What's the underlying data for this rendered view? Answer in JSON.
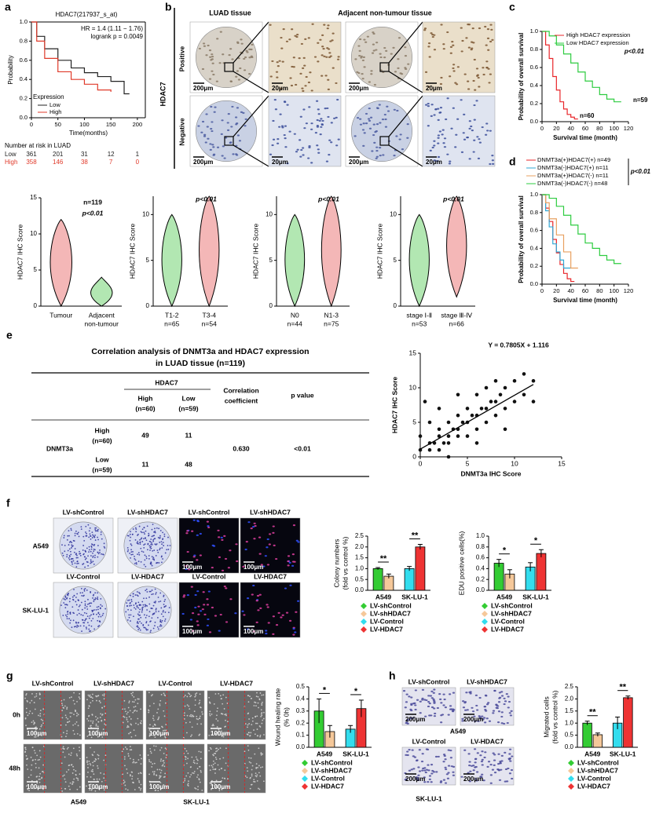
{
  "panel_labels": [
    "a",
    "b",
    "c",
    "d",
    "e",
    "f",
    "g",
    "h"
  ],
  "panel_b": {
    "columns": [
      "LUAD tissue",
      "Adjacent non-tumour tissue"
    ],
    "rows": [
      "Positive",
      "Negative"
    ],
    "marker": "HDAC7",
    "scales": [
      "200μm",
      "20μm",
      "200μm",
      "20μm",
      "200μm",
      "20μm",
      "200μm",
      "20μm"
    ]
  },
  "table_e": {
    "title": [
      "Correlation analysis of DNMT3a and HDAC7 expression",
      "in LUAD tissue (n=119)"
    ],
    "col_group": "HDAC7",
    "col_heads": [
      [
        "High",
        "(n=60)"
      ],
      [
        "Low",
        "(n=59)"
      ]
    ],
    "stat_heads": [
      [
        "Correlation",
        "coefficient"
      ],
      [
        "p value"
      ]
    ],
    "row_group": "DNMT3a",
    "rows": [
      {
        "head": [
          "High",
          "(n=60)"
        ],
        "cells": [
          49,
          11
        ]
      },
      {
        "head": [
          "Low",
          "(n=59)"
        ],
        "cells": [
          11,
          48
        ]
      }
    ],
    "coefficient": "0.630",
    "p": "<0.01"
  },
  "images_f": {
    "headers": [
      [
        "LV-shControl",
        "LV-shHDAC7",
        "LV-shControl",
        "LV-shHDAC7"
      ],
      [
        "LV-Control",
        "LV-HDAC7",
        "LV-Control",
        "LV-HDAC7"
      ]
    ],
    "rows": [
      "A549",
      "SK-LU-1"
    ],
    "scale": "100μm"
  },
  "images_g": {
    "headers": [
      "LV-shControl",
      "LV-shHDAC7",
      "LV-Control",
      "LV-HDAC7"
    ],
    "rows": [
      "0h",
      "48h"
    ],
    "groups": [
      "A549",
      "SK-LU-1"
    ],
    "scale": "100μm"
  },
  "images_h": {
    "headers": [
      [
        "LV-shControl",
        "LV-shHDAC7"
      ],
      [
        "LV-Control",
        "LV-HDAC7"
      ]
    ],
    "groups": [
      "A549",
      "SK-LU-1"
    ],
    "scale": "200μm"
  },
  "chart_data": [
    {
      "type": "line",
      "step": true,
      "title": "HDAC7(217937_s_at)",
      "annotations": [
        "HR = 1.4 (1.11 − 1.76)",
        "logrank p = 0.0049"
      ],
      "xlabel": "Time(months)",
      "ylabel": "Probability",
      "xlim": [
        0,
        215
      ],
      "xticks": [
        0,
        50,
        100,
        150,
        200
      ],
      "ylim": [
        0,
        1
      ],
      "yticks": [
        {
          "value": 0,
          "label": "0.0"
        },
        0.2,
        0.4,
        0.6,
        0.8,
        {
          "value": 1,
          "label": "1.0"
        }
      ],
      "legend_title": "Expression",
      "series": [
        {
          "name": "Low",
          "color": "#222222",
          "x": [
            0,
            10,
            25,
            50,
            75,
            100,
            125,
            150,
            175,
            185
          ],
          "values": [
            1,
            0.85,
            0.72,
            0.6,
            0.52,
            0.47,
            0.43,
            0.38,
            0.25,
            0.25
          ]
        },
        {
          "name": "High",
          "color": "#e03a2a",
          "x": [
            0,
            10,
            25,
            50,
            75,
            100,
            125,
            150
          ],
          "values": [
            1,
            0.8,
            0.62,
            0.48,
            0.4,
            0.35,
            0.29,
            0.27
          ]
        }
      ],
      "risk_table": {
        "title": "Number at risk in LUAD",
        "rows": [
          {
            "name": "Low",
            "values": [
              361,
              201,
              31,
              12,
              1
            ]
          },
          {
            "name": "High",
            "values": [
              358,
              146,
              38,
              7,
              0
            ]
          }
        ]
      }
    },
    {
      "type": "line",
      "step": true,
      "xlabel": "Survival time (month)",
      "ylabel": "Probability of overall survival",
      "xlim": [
        0,
        120
      ],
      "xticks": [
        0,
        20,
        40,
        60,
        80,
        100,
        120
      ],
      "ylim": [
        0,
        1
      ],
      "yticks": [
        {
          "value": 0,
          "label": "0.0"
        },
        0.2,
        0.4,
        0.6,
        0.8,
        {
          "value": 1,
          "label": "1.0"
        }
      ],
      "annotations": [
        "p<0.01",
        "n=59",
        "n=60"
      ],
      "series": [
        {
          "name": "High HDAC7 expression",
          "color": "#e8262a",
          "x": [
            0,
            5,
            10,
            15,
            20,
            25,
            30,
            35,
            40,
            45,
            50
          ],
          "values": [
            1,
            0.85,
            0.7,
            0.5,
            0.35,
            0.22,
            0.14,
            0.08,
            0.05,
            0.03,
            0.03
          ]
        },
        {
          "name": "Low HDAC7 expression",
          "color": "#2ecc40",
          "x": [
            0,
            10,
            20,
            30,
            40,
            50,
            60,
            70,
            80,
            90,
            100,
            110
          ],
          "values": [
            1,
            0.95,
            0.85,
            0.75,
            0.65,
            0.55,
            0.45,
            0.38,
            0.3,
            0.25,
            0.22,
            0.22
          ]
        }
      ]
    },
    {
      "type": "line",
      "step": true,
      "xlabel": "Survival time (month)",
      "ylabel": "Probability of overall survival",
      "xlim": [
        0,
        120
      ],
      "xticks": [
        0,
        20,
        40,
        60,
        80,
        100,
        120
      ],
      "ylim": [
        0,
        1
      ],
      "yticks": [
        {
          "value": 0,
          "label": "0.0"
        },
        0.2,
        0.4,
        0.6,
        0.8,
        {
          "value": 1,
          "label": "1.0"
        }
      ],
      "annotations": [
        "p<0.01"
      ],
      "series": [
        {
          "name": "DNMT3a(+)HDAC7(+) n=49",
          "color": "#e8262a",
          "x": [
            0,
            5,
            10,
            15,
            20,
            25,
            30,
            35,
            40,
            45
          ],
          "values": [
            1,
            0.85,
            0.7,
            0.5,
            0.35,
            0.22,
            0.12,
            0.06,
            0.03,
            0.03
          ]
        },
        {
          "name": "DNMT3a(-)HDAC7(+)  n=11",
          "color": "#2fa8d6",
          "x": [
            0,
            5,
            10,
            15,
            20,
            25,
            30,
            40
          ],
          "values": [
            1,
            0.82,
            0.64,
            0.45,
            0.36,
            0.27,
            0.18,
            0.18
          ]
        },
        {
          "name": "DNMT3a(+)HDAC7(-)  n=11",
          "color": "#e8a060",
          "x": [
            0,
            5,
            10,
            20,
            30,
            40,
            50
          ],
          "values": [
            1,
            0.91,
            0.73,
            0.55,
            0.36,
            0.18,
            0.18
          ]
        },
        {
          "name": "DNMT3a(-)HDAC7(-)  n=48",
          "color": "#2ecc40",
          "x": [
            0,
            10,
            20,
            30,
            40,
            50,
            60,
            70,
            80,
            90,
            100,
            110
          ],
          "values": [
            1,
            0.96,
            0.87,
            0.77,
            0.66,
            0.56,
            0.46,
            0.4,
            0.32,
            0.27,
            0.23,
            0.23
          ]
        }
      ]
    },
    {
      "type": "violin",
      "ylabel": "HDAC7 IHC Score",
      "ylim": [
        0,
        15
      ],
      "yticks": [
        0,
        5,
        10,
        15
      ],
      "annotations": [
        "n=119",
        "p<0.01"
      ],
      "categories": [
        [
          "Tumour"
        ],
        [
          "Adjacent",
          "non-tumour"
        ]
      ],
      "ranges": [
        [
          0,
          12
        ],
        [
          0,
          4
        ]
      ],
      "colors": [
        "#e03030",
        "#22bb22"
      ]
    },
    {
      "type": "violin",
      "ylabel": "HDAC7 IHC Score",
      "ylim": [
        0,
        12
      ],
      "yticks": [
        0,
        5,
        10
      ],
      "annotations": [
        "p<0.01"
      ],
      "categories": [
        [
          "T1-2",
          "n=65"
        ],
        [
          "T3-4",
          "n=54"
        ]
      ],
      "ranges": [
        [
          0,
          10
        ],
        [
          0,
          12
        ]
      ],
      "colors": [
        "#22bb22",
        "#e03030"
      ]
    },
    {
      "type": "violin",
      "ylabel": "HDAC7 IHC Score",
      "ylim": [
        0,
        12
      ],
      "yticks": [
        0,
        5,
        10
      ],
      "annotations": [
        "p<0.01"
      ],
      "categories": [
        [
          "N0",
          "n=44"
        ],
        [
          "N1-3",
          "n=75"
        ]
      ],
      "ranges": [
        [
          0,
          10
        ],
        [
          0,
          12
        ]
      ],
      "colors": [
        "#22bb22",
        "#e03030"
      ]
    },
    {
      "type": "violin",
      "ylabel": "HDAC7 IHC Score",
      "ylim": [
        0,
        12
      ],
      "yticks": [
        0,
        5,
        10
      ],
      "annotations": [
        "p<0.01"
      ],
      "categories": [
        [
          "stage Ⅰ-Ⅱ",
          "n=53"
        ],
        [
          "stage Ⅲ-Ⅳ",
          "n=66"
        ]
      ],
      "ranges": [
        [
          0,
          10
        ],
        [
          1,
          12
        ]
      ],
      "colors": [
        "#22bb22",
        "#e03030"
      ]
    },
    {
      "type": "scatter",
      "xlabel": "DNMT3a  IHC Score",
      "ylabel": "HDAC7  IHC Score",
      "fit_label": "Y = 0.7805X + 1.116",
      "fit": {
        "slope": 0.7805,
        "intercept": 1.116
      },
      "xlim": [
        0,
        15
      ],
      "xticks": [
        0,
        5,
        10,
        15
      ],
      "ylim": [
        0,
        15
      ],
      "yticks": [
        0,
        5,
        10,
        15
      ],
      "x": [
        0,
        0,
        0.5,
        1,
        1,
        1.5,
        2,
        2,
        2,
        2.5,
        3,
        3,
        3,
        3.5,
        4,
        4,
        4,
        4.5,
        5,
        5,
        5,
        5.5,
        6,
        6,
        6,
        6.5,
        7,
        7,
        7,
        7.5,
        8,
        8,
        8,
        8.5,
        9,
        9,
        10,
        10,
        11,
        11,
        12,
        12,
        2,
        4,
        1,
        3,
        6,
        9
      ],
      "y": [
        1,
        3,
        8,
        1,
        2,
        2,
        1,
        3,
        4,
        2,
        2,
        3,
        5,
        4,
        3,
        4,
        6,
        5,
        3,
        5,
        7,
        6,
        4,
        6,
        9,
        7,
        5,
        7,
        10,
        8,
        6,
        8,
        11,
        9,
        7,
        10,
        8,
        11,
        9,
        12,
        8,
        11,
        7,
        9,
        5,
        0,
        2,
        4
      ]
    },
    {
      "type": "bar",
      "ylabel": [
        "Colony numbers",
        "(fold vs control %)"
      ],
      "ylim": [
        0,
        2.5
      ],
      "yticks": [
        {
          "value": 0,
          "label": "0.0"
        },
        0.5,
        {
          "value": 1,
          "label": "1.0"
        },
        1.5,
        {
          "value": 2,
          "label": "2.0"
        },
        2.5
      ],
      "categories": [
        "A549",
        "SK-LU-1"
      ],
      "significance": [
        "**",
        "**"
      ],
      "series": [
        {
          "name": "LV-shControl",
          "color": "#33cc33",
          "values": [
            1.0,
            null
          ],
          "errors": [
            0.05,
            null
          ]
        },
        {
          "name": "LV-shHDAC7",
          "color": "#f5c89a",
          "values": [
            0.65,
            null
          ],
          "errors": [
            0.1,
            null
          ]
        },
        {
          "name": "LV-Control",
          "color": "#33ddee",
          "values": [
            null,
            1.0
          ],
          "errors": [
            null,
            0.1
          ]
        },
        {
          "name": "LV-HDAC7",
          "color": "#ee3333",
          "values": [
            null,
            2.0
          ],
          "errors": [
            null,
            0.12
          ]
        }
      ]
    },
    {
      "type": "bar",
      "ylabel": [
        "EDU positive cells(%)"
      ],
      "ylim": [
        0,
        1
      ],
      "yticks": [
        {
          "value": 0,
          "label": "0.0"
        },
        0.2,
        0.4,
        0.6,
        0.8,
        {
          "value": 1,
          "label": "1.0"
        }
      ],
      "categories": [
        "A549",
        "SK-LU-1"
      ],
      "significance": [
        "*",
        "*"
      ],
      "series": [
        {
          "name": "LV-shControl",
          "color": "#33cc33",
          "values": [
            0.5,
            null
          ],
          "errors": [
            0.07,
            null
          ]
        },
        {
          "name": "LV-shHDAC7",
          "color": "#f5c89a",
          "values": [
            0.3,
            null
          ],
          "errors": [
            0.08,
            null
          ]
        },
        {
          "name": "LV-Control",
          "color": "#33ddee",
          "values": [
            null,
            0.43
          ],
          "errors": [
            null,
            0.08
          ]
        },
        {
          "name": "LV-HDAC7",
          "color": "#ee3333",
          "values": [
            null,
            0.68
          ],
          "errors": [
            null,
            0.07
          ]
        }
      ]
    },
    {
      "type": "bar",
      "ylabel": [
        "Wound healing rate",
        "(% 0h)"
      ],
      "ylim": [
        0,
        0.5
      ],
      "yticks": [
        {
          "value": 0,
          "label": "0.0"
        },
        0.1,
        0.2,
        0.3,
        0.4,
        0.5
      ],
      "categories": [
        "A549",
        "SK-LU-1"
      ],
      "significance": [
        "*",
        "*"
      ],
      "series": [
        {
          "name": "LV-shControl",
          "color": "#33cc33",
          "values": [
            0.3,
            null
          ],
          "errors": [
            0.1,
            null
          ]
        },
        {
          "name": "LV-shHDAC7",
          "color": "#f5c89a",
          "values": [
            0.13,
            null
          ],
          "errors": [
            0.05,
            null
          ]
        },
        {
          "name": "LV-Control",
          "color": "#33ddee",
          "values": [
            null,
            0.15
          ],
          "errors": [
            null,
            0.03
          ]
        },
        {
          "name": "LV-HDAC7",
          "color": "#ee3333",
          "values": [
            null,
            0.32
          ],
          "errors": [
            null,
            0.07
          ]
        }
      ]
    },
    {
      "type": "bar",
      "ylabel": [
        "Migrated cells",
        "(fold vs control %)"
      ],
      "ylim": [
        0,
        2.5
      ],
      "yticks": [
        {
          "value": 0,
          "label": "0.0"
        },
        0.5,
        {
          "value": 1,
          "label": "1.0"
        },
        1.5,
        {
          "value": 2,
          "label": "2.0"
        },
        2.5
      ],
      "categories": [
        "A549",
        "SK-LU-1"
      ],
      "significance": [
        "**",
        "**"
      ],
      "series": [
        {
          "name": "LV-shControl",
          "color": "#33cc33",
          "values": [
            1.0,
            null
          ],
          "errors": [
            0.08,
            null
          ]
        },
        {
          "name": "LV-shHDAC7",
          "color": "#f5c89a",
          "values": [
            0.52,
            null
          ],
          "errors": [
            0.07,
            null
          ]
        },
        {
          "name": "LV-Control",
          "color": "#33ddee",
          "values": [
            null,
            1.0
          ],
          "errors": [
            null,
            0.25
          ]
        },
        {
          "name": "LV-HDAC7",
          "color": "#ee3333",
          "values": [
            null,
            2.05
          ],
          "errors": [
            null,
            0.07
          ]
        }
      ]
    }
  ]
}
